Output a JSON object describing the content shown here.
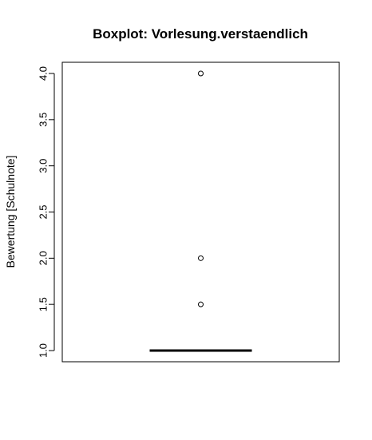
{
  "chart_data": {
    "type": "boxplot",
    "title": "Boxplot: Vorlesung.verstaendlich",
    "xlabel": "",
    "ylabel": "Bewertung [Schulnote]",
    "ylim": [
      1.0,
      4.0
    ],
    "y_ticks": [
      1.0,
      1.5,
      2.0,
      2.5,
      3.0,
      3.5,
      4.0
    ],
    "y_tick_labels": [
      "1.0",
      "1.5",
      "2.0",
      "2.5",
      "3.0",
      "3.5",
      "4.0"
    ],
    "grid": false,
    "legend": "none",
    "box": {
      "min": 1.0,
      "q1": 1.0,
      "median": 1.0,
      "q3": 1.0,
      "max": 1.0
    },
    "outliers": [
      1.5,
      2.0,
      4.0
    ]
  }
}
